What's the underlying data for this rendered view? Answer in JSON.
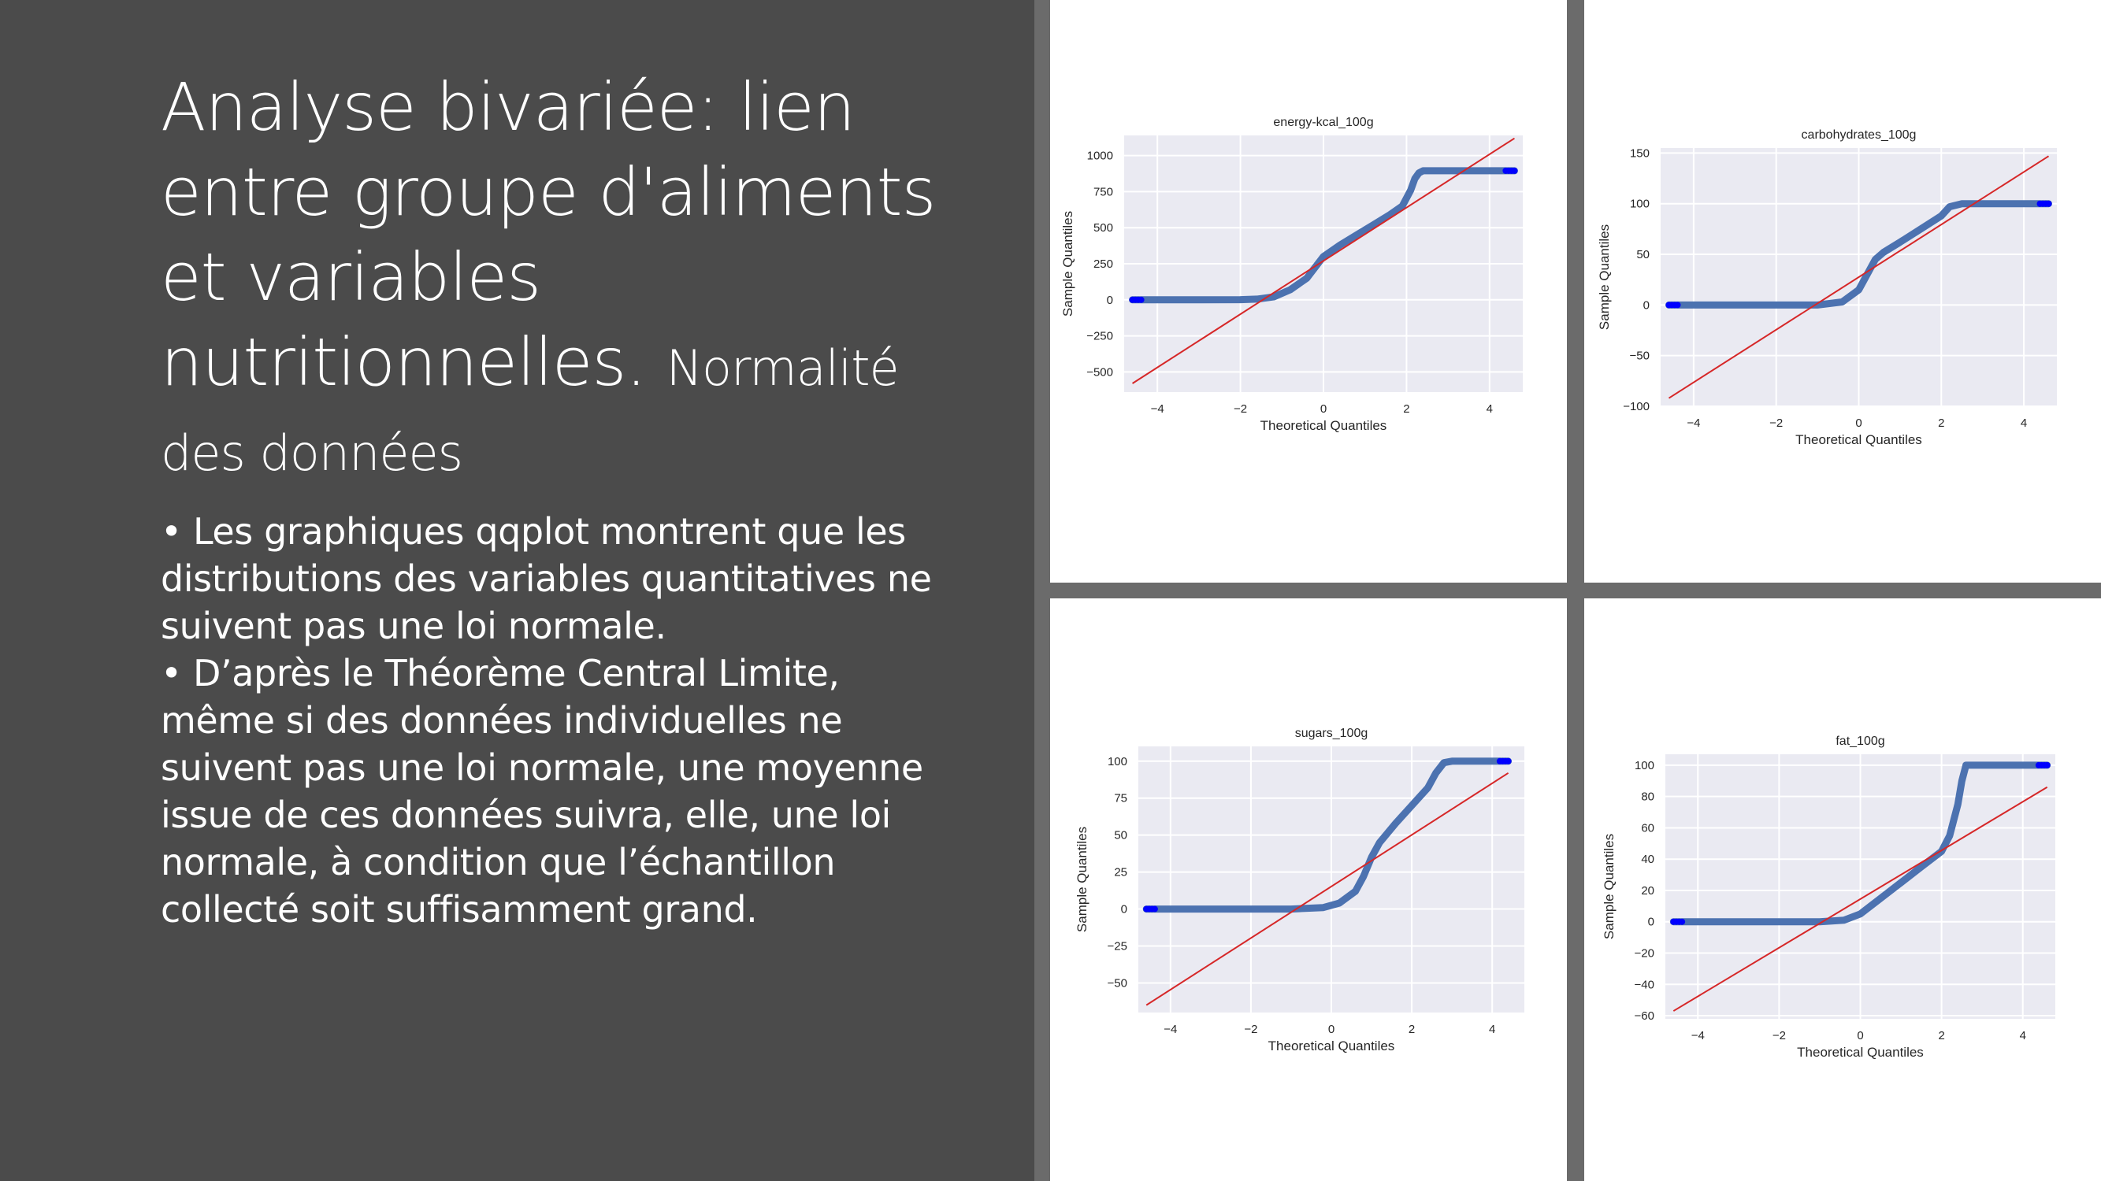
{
  "slide": {
    "title_main": "Analyse bivariée: lien entre groupe d'aliments et variables nutritionnelles.",
    "title_sub": "Normalité des données",
    "bullets": [
      "•  Les graphiques qqplot montrent que les distributions des variables quantitatives ne suivent pas une loi normale.",
      "•   D’après le Théorème Central Limite, même si des données individuelles ne suivent pas une loi normale, une moyenne issue de ces données suivra, elle, une loi normale, à condition que l’échantillon collecté soit suffisamment grand."
    ]
  },
  "colors": {
    "slide_bg": "#4b4b4b",
    "separator": "#6b6b6b",
    "plot_bg": "#eaeaf2",
    "grid": "#ffffff",
    "points": "#4c72b0",
    "end_points": "#0000ff",
    "reference_line": "#d62728"
  },
  "chart_data": [
    {
      "type": "scatter",
      "title": "energy-kcal_100g",
      "xlabel": "Theoretical Quantiles",
      "ylabel": "Sample Quantiles",
      "xlim": [
        -4.8,
        4.8
      ],
      "ylim": [
        -640,
        1140
      ],
      "xticks": [
        -4,
        -2,
        0,
        2,
        4
      ],
      "xtick_labels": [
        "−4",
        "−2",
        "0",
        "2",
        "4"
      ],
      "yticks": [
        -500,
        -250,
        0,
        250,
        500,
        750,
        1000
      ],
      "ytick_labels": [
        "−500",
        "−250",
        "0",
        "250",
        "500",
        "750",
        "1000"
      ],
      "x": [
        -4.6,
        -4.0,
        -3.0,
        -2.0,
        -1.6,
        -1.2,
        -0.8,
        -0.4,
        0.0,
        0.4,
        0.8,
        1.2,
        1.6,
        1.9,
        2.1,
        2.2,
        2.3,
        2.4,
        3.0,
        4.0,
        4.6
      ],
      "y": [
        0,
        0,
        0,
        1,
        5,
        20,
        70,
        150,
        300,
        380,
        450,
        520,
        590,
        650,
        760,
        840,
        880,
        895,
        895,
        895,
        895
      ],
      "reference_line": {
        "x": [
          -4.6,
          4.6
        ],
        "y": [
          -580,
          1120
        ]
      }
    },
    {
      "type": "scatter",
      "title": "carbohydrates_100g",
      "xlabel": "Theoretical Quantiles",
      "ylabel": "Sample Quantiles",
      "xlim": [
        -4.8,
        4.8
      ],
      "ylim": [
        -100,
        155
      ],
      "xticks": [
        -4,
        -2,
        0,
        2,
        4
      ],
      "xtick_labels": [
        "−4",
        "−2",
        "0",
        "2",
        "4"
      ],
      "yticks": [
        -100,
        -50,
        0,
        50,
        100,
        150
      ],
      "ytick_labels": [
        "−100",
        "−50",
        "0",
        "50",
        "100",
        "150"
      ],
      "x": [
        -4.6,
        -4.0,
        -3.0,
        -2.0,
        -1.0,
        -0.4,
        0.0,
        0.2,
        0.4,
        0.6,
        1.0,
        1.5,
        2.0,
        2.2,
        2.5,
        3.0,
        4.0,
        4.6
      ],
      "y": [
        0,
        0,
        0,
        0,
        0,
        3,
        15,
        30,
        45,
        52,
        62,
        75,
        88,
        97,
        100,
        100,
        100,
        100
      ],
      "reference_line": {
        "x": [
          -4.6,
          4.6
        ],
        "y": [
          -92,
          147
        ]
      }
    },
    {
      "type": "scatter",
      "title": "sugars_100g",
      "xlabel": "Theoretical Quantiles",
      "ylabel": "Sample Quantiles",
      "xlim": [
        -4.8,
        4.8
      ],
      "ylim": [
        -70,
        110
      ],
      "xticks": [
        -4,
        -2,
        0,
        2,
        4
      ],
      "xtick_labels": [
        "−4",
        "−2",
        "0",
        "2",
        "4"
      ],
      "yticks": [
        -50,
        -25,
        0,
        25,
        50,
        75,
        100
      ],
      "ytick_labels": [
        "−50",
        "−25",
        "0",
        "25",
        "50",
        "75",
        "100"
      ],
      "x": [
        -4.6,
        -4.0,
        -3.0,
        -2.0,
        -1.0,
        -0.2,
        0.2,
        0.6,
        0.8,
        1.0,
        1.2,
        1.6,
        2.0,
        2.4,
        2.6,
        2.8,
        3.0,
        4.0,
        4.4
      ],
      "y": [
        0,
        0,
        0,
        0,
        0,
        1,
        4,
        12,
        22,
        35,
        45,
        58,
        70,
        82,
        92,
        99,
        100,
        100,
        100
      ],
      "reference_line": {
        "x": [
          -4.6,
          4.4
        ],
        "y": [
          -65,
          92
        ]
      }
    },
    {
      "type": "scatter",
      "title": "fat_100g",
      "xlabel": "Theoretical Quantiles",
      "ylabel": "Sample Quantiles",
      "xlim": [
        -4.8,
        4.8
      ],
      "ylim": [
        -62,
        107
      ],
      "xticks": [
        -4,
        -2,
        0,
        2,
        4
      ],
      "xtick_labels": [
        "−4",
        "−2",
        "0",
        "2",
        "4"
      ],
      "yticks": [
        -60,
        -40,
        -20,
        0,
        20,
        40,
        60,
        80,
        100
      ],
      "ytick_labels": [
        "−60",
        "−40",
        "−20",
        "0",
        "20",
        "40",
        "60",
        "80",
        "100"
      ],
      "x": [
        -4.6,
        -4.0,
        -3.0,
        -2.0,
        -1.0,
        -0.4,
        0.0,
        0.5,
        1.0,
        1.5,
        2.0,
        2.2,
        2.3,
        2.4,
        2.5,
        2.6,
        3.0,
        4.0,
        4.6
      ],
      "y": [
        0,
        0,
        0,
        0,
        0,
        1,
        5,
        15,
        25,
        35,
        45,
        55,
        65,
        75,
        90,
        100,
        100,
        100,
        100
      ],
      "reference_line": {
        "x": [
          -4.6,
          4.6
        ],
        "y": [
          -57,
          86
        ]
      }
    }
  ]
}
